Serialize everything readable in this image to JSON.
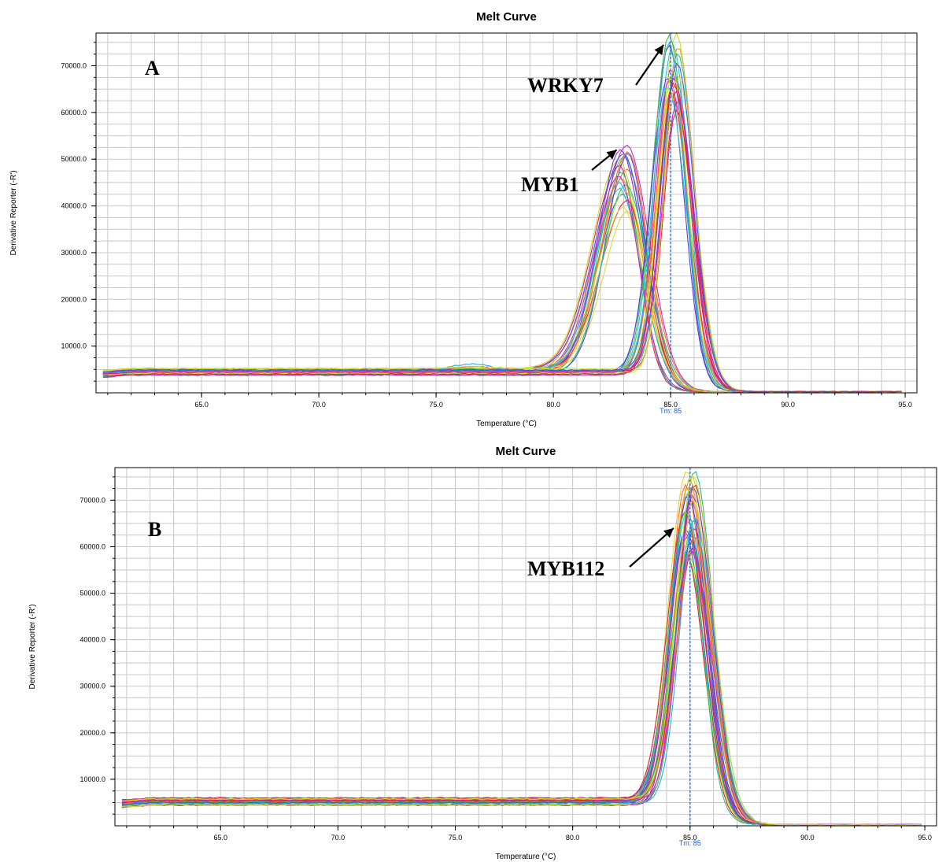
{
  "chart_data": [
    {
      "type": "line",
      "panel": "A",
      "title": "Melt Curve",
      "xlabel": "Temperature (°C)",
      "ylabel": "Derivative Reporter (-R')",
      "xlim": [
        60.5,
        95.5
      ],
      "ylim": [
        0,
        77000
      ],
      "x_ticks": [
        65.0,
        70.0,
        75.0,
        80.0,
        85.0,
        90.0,
        95.0
      ],
      "x_tick_labels": [
        "65.0",
        "70.0",
        "75.0",
        "80.0",
        "85.0",
        "90.0",
        "95.0"
      ],
      "y_ticks": [
        10000,
        20000,
        30000,
        40000,
        50000,
        60000,
        70000
      ],
      "y_tick_labels": [
        "10000.0",
        "20000.0",
        "30000.0",
        "40000.0",
        "50000.0",
        "60000.0",
        "70000.0"
      ],
      "grid": true,
      "tm": {
        "value": 85,
        "label": "Tm: 85",
        "color": "#1f5fd6"
      },
      "annotations": [
        {
          "text": "WRKY7",
          "tip_x": 84.7,
          "tip_y": 74500
        },
        {
          "text": "MYB1",
          "tip_x": 82.7,
          "tip_y": 52000
        }
      ],
      "curve_groups": [
        {
          "peak_x": 83.0,
          "peak_min": 39000,
          "peak_max": 53500,
          "width_left": 1.5,
          "width_right": 1.2,
          "count": 20
        },
        {
          "peak_x": 85.1,
          "peak_min": 59000,
          "peak_max": 77000,
          "width_left": 0.9,
          "width_right": 1.0,
          "count": 22
        }
      ],
      "baseline": 4500,
      "palette": [
        "#e6d43a",
        "#c9e02a",
        "#3fbf3f",
        "#22c28a",
        "#27c6c9",
        "#3aa6e8",
        "#3b5fe0",
        "#5a3fd6",
        "#8a2be2",
        "#c52dbf",
        "#e0207a",
        "#e8203a",
        "#ff6a2a",
        "#f0a030"
      ]
    },
    {
      "type": "line",
      "panel": "B",
      "title": "Melt Curve",
      "xlabel": "Temperature (°C)",
      "ylabel": "Derivative Reporter (-R')",
      "xlim": [
        60.5,
        95.5
      ],
      "ylim": [
        0,
        77000
      ],
      "x_ticks": [
        65.0,
        70.0,
        75.0,
        80.0,
        85.0,
        90.0,
        95.0
      ],
      "x_tick_labels": [
        "65.0",
        "70.0",
        "75.0",
        "80.0",
        "85.0",
        "90.0",
        "95.0"
      ],
      "y_ticks": [
        10000,
        20000,
        30000,
        40000,
        50000,
        60000,
        70000
      ],
      "y_tick_labels": [
        "10000.0",
        "20000.0",
        "30000.0",
        "40000.0",
        "50000.0",
        "60000.0",
        "70000.0"
      ],
      "grid": true,
      "tm": {
        "value": 85,
        "label": "Tm: 85",
        "color": "#1f5fd6"
      },
      "annotations": [
        {
          "text": "MYB112",
          "tip_x": 84.3,
          "tip_y": 64000
        }
      ],
      "curve_groups": [
        {
          "peak_x": 85.0,
          "peak_min": 58000,
          "peak_max": 77000,
          "width_left": 1.0,
          "width_right": 1.1,
          "count": 34
        }
      ],
      "baseline": 5200,
      "palette": [
        "#e6d43a",
        "#c9e02a",
        "#3fbf3f",
        "#22c28a",
        "#27c6c9",
        "#3aa6e8",
        "#3b5fe0",
        "#5a3fd6",
        "#8a2be2",
        "#c52dbf",
        "#e0207a",
        "#e8203a",
        "#ff6a2a",
        "#f0a030"
      ]
    }
  ],
  "panel_labels": [
    "A",
    "B"
  ]
}
